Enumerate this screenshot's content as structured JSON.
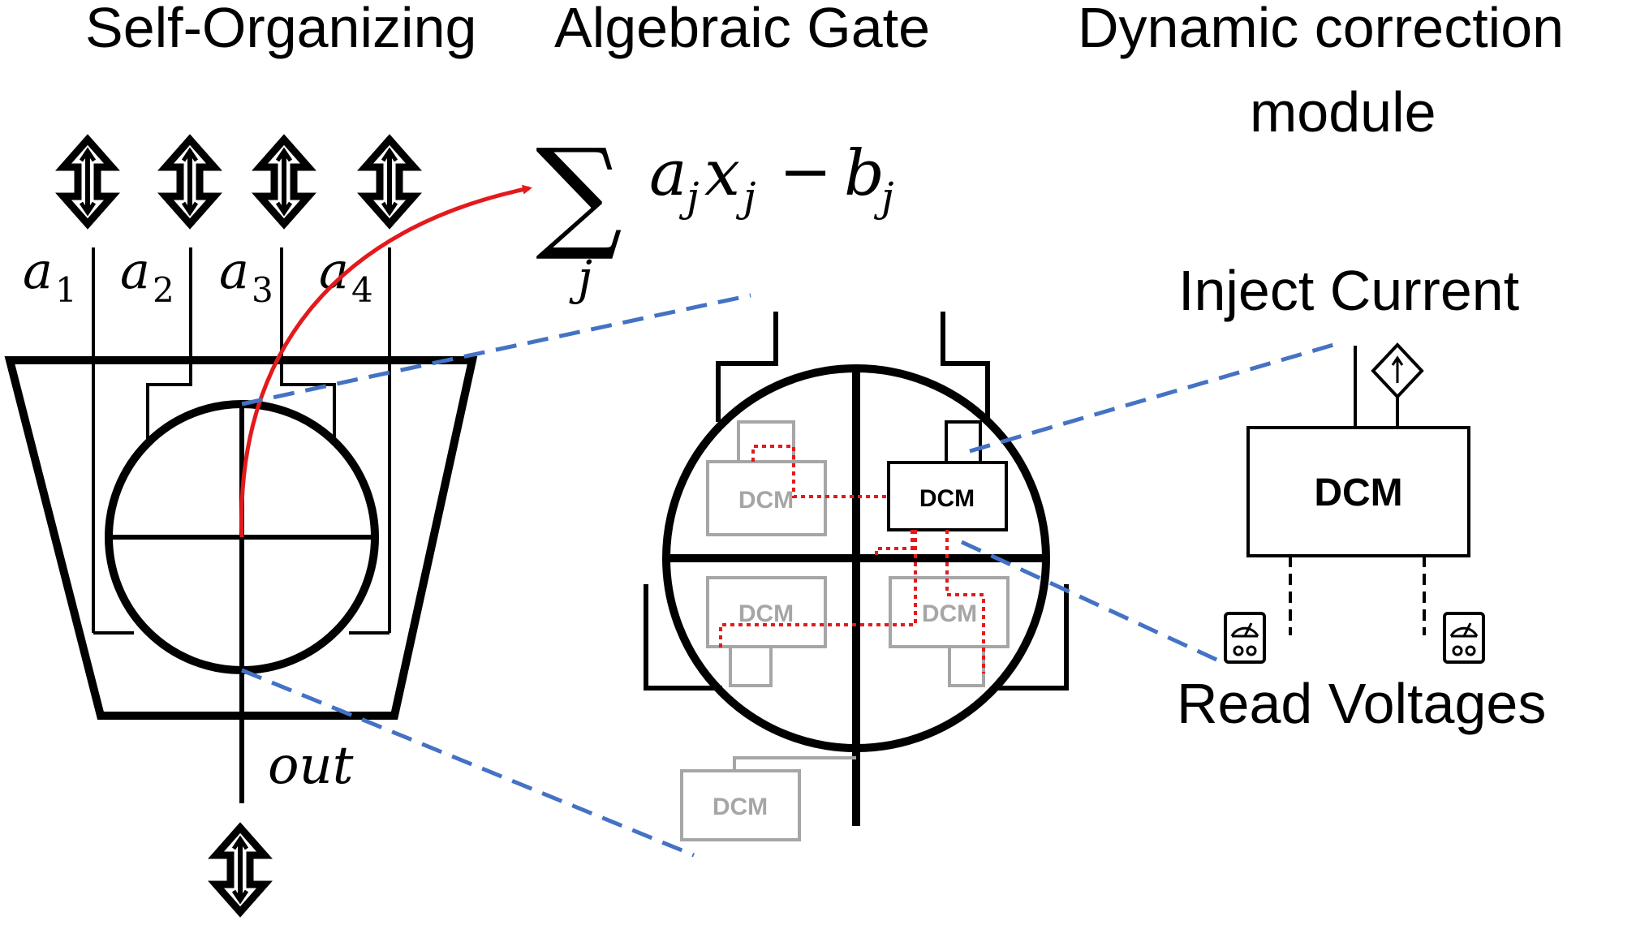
{
  "titles": {
    "left": "Self-Organizing",
    "center": "Algebraic Gate",
    "right_line1": "Dynamic correction",
    "right_line2": "module"
  },
  "formula": {
    "sum_symbol": "∑",
    "subscript": "j",
    "expression": "a",
    "expression_sub": "j",
    "x": "x",
    "x_sub": "j",
    "minus": "−",
    "b": "b",
    "b_sub": "j"
  },
  "inputs": [
    {
      "name": "a",
      "sub": "1"
    },
    {
      "name": "a",
      "sub": "2"
    },
    {
      "name": "a",
      "sub": "3"
    },
    {
      "name": "a",
      "sub": "4"
    }
  ],
  "output_label": "out",
  "dcm_label": "DCM",
  "inject_current": "Inject Current",
  "read_voltages": "Read Voltages",
  "colors": {
    "red_arrow": "#e31a1c",
    "blue_dash": "#4472c4",
    "faded_dcm": "#a6a6a6"
  }
}
